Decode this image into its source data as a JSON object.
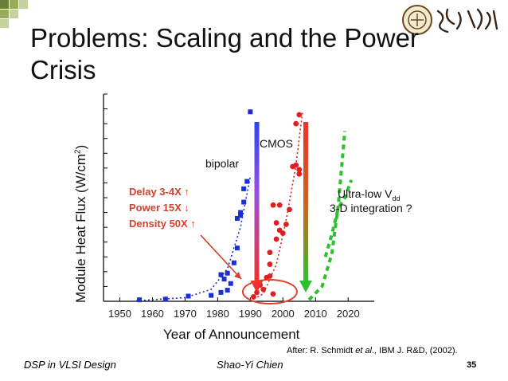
{
  "slide": {
    "title": "Problems: Scaling and the Power Crisis",
    "footer_left": "DSP in VLSI Design",
    "footer_center": "Shao-Yi Chien",
    "page_number": "35",
    "citation": {
      "prefix": "After: R. Schmidt ",
      "etal": "et al",
      "suffix": "., IBM J. R&D, (2002)."
    },
    "logo_text": "臺灣大學"
  },
  "annotations": {
    "bipolar": "bipolar",
    "cmos": "CMOS",
    "delay": "Delay 3-4X ↑",
    "power": "Power 15X ↓",
    "density": "Density 50X ↑",
    "ultralow_prefix": "Ultra-low V",
    "ultralow_sub": "dd",
    "integration": "3-D integration ?"
  },
  "colors": {
    "bipolar": "#1a2fd6",
    "cmos": "#e02020",
    "future": "#2ec02e",
    "note": "#d2412d",
    "deco_squares": [
      "#6b7f3a",
      "#98ad5b",
      "#c5d19e"
    ]
  },
  "chart_data": {
    "type": "scatter",
    "xlabel": "Year of Announcement",
    "ylabel": "Module Heat Flux (W/cm",
    "ylabel_sup": "2",
    "ylabel_close": ")",
    "xlim": [
      1945,
      2028
    ],
    "xticks": [
      1950,
      1960,
      1970,
      1980,
      1990,
      2000,
      2010,
      2020
    ],
    "ylim": [
      0,
      14
    ],
    "yticks": [
      0,
      1,
      2,
      3,
      4,
      5,
      6,
      7,
      8,
      9,
      10,
      11,
      12,
      13,
      14
    ],
    "series": [
      {
        "key": "bipolar",
        "points": [
          [
            1956,
            0.1
          ],
          [
            1964,
            0.15
          ],
          [
            1971,
            0.35
          ],
          [
            1978,
            0.4
          ],
          [
            1981,
            0.6
          ],
          [
            1983,
            0.75
          ],
          [
            1981,
            1.8
          ],
          [
            1982,
            1.5
          ],
          [
            1983,
            1.9
          ],
          [
            1984,
            1.2
          ],
          [
            1985,
            2.6
          ],
          [
            1986,
            3.6
          ],
          [
            1987,
            5.8
          ],
          [
            1988,
            6.7
          ],
          [
            1988,
            7.6
          ],
          [
            1989,
            8.1
          ],
          [
            1987,
            6.0
          ],
          [
            1986,
            5.6
          ],
          [
            1990,
            12.8
          ]
        ],
        "trend": [
          [
            1955,
            0.03
          ],
          [
            1970,
            0.25
          ],
          [
            1978,
            0.8
          ],
          [
            1983,
            2.2
          ],
          [
            1987,
            5.0
          ],
          [
            1990,
            8.4
          ]
        ]
      },
      {
        "key": "cmos",
        "points": [
          [
            1991,
            0.3
          ],
          [
            1992,
            0.6
          ],
          [
            1993,
            1.1
          ],
          [
            1994,
            0.8
          ],
          [
            1995,
            1.6
          ],
          [
            1996,
            1.7
          ],
          [
            1997,
            0.5
          ],
          [
            1996,
            2.5
          ],
          [
            1996,
            3.3
          ],
          [
            1998,
            4.2
          ],
          [
            1999,
            4.8
          ],
          [
            1998,
            5.3
          ],
          [
            2000,
            4.6
          ],
          [
            2001,
            5.2
          ],
          [
            1997,
            6.5
          ],
          [
            1999,
            6.5
          ],
          [
            2002,
            6.2
          ],
          [
            2003,
            9.1
          ],
          [
            2004,
            9.2
          ],
          [
            2005,
            8.6
          ],
          [
            2005,
            8.9
          ],
          [
            2004,
            12.0
          ],
          [
            2005,
            12.6
          ]
        ],
        "trend": [
          [
            1990,
            0.05
          ],
          [
            1994,
            0.5
          ],
          [
            1998,
            2.5
          ],
          [
            2001,
            5.5
          ],
          [
            2004,
            9.2
          ],
          [
            2006,
            12.8
          ]
        ]
      },
      {
        "key": "future",
        "points": [],
        "trend": [
          [
            2008,
            0.1
          ],
          [
            2012,
            1.0
          ],
          [
            2015,
            3.2
          ],
          [
            2017,
            6.5
          ],
          [
            2019,
            11.5
          ]
        ],
        "trend2": [
          [
            2013,
            3.0
          ],
          [
            2015,
            4.5
          ],
          [
            2017,
            6.3
          ],
          [
            2019,
            7.0
          ],
          [
            2021,
            8.2
          ]
        ]
      }
    ]
  }
}
